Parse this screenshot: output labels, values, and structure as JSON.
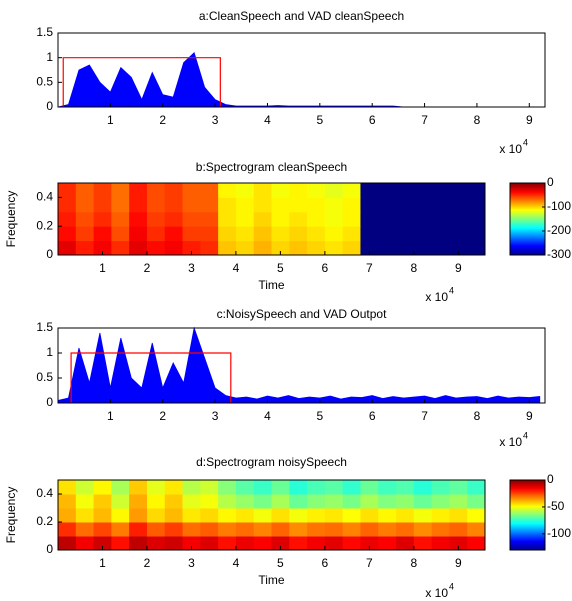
{
  "chart_data": [
    {
      "type": "area",
      "title": "a:CleanSpeech and VAD cleanSpeech",
      "x": [
        0,
        2000,
        4000,
        6000,
        8000,
        10000,
        12000,
        14000,
        16000,
        18000,
        20000,
        22000,
        24000,
        26000,
        28000,
        30000,
        32000,
        34000,
        36000,
        38000,
        40000,
        42000,
        44000,
        46000,
        48000,
        50000,
        52000,
        54000,
        56000,
        58000,
        60000,
        62000,
        64000,
        66000,
        68000,
        70000,
        72000,
        74000,
        76000,
        78000,
        80000,
        82000,
        84000,
        86000,
        88000,
        90000,
        92000
      ],
      "series": [
        {
          "color": "#0000ff",
          "values": [
            0,
            0.05,
            0.75,
            0.85,
            0.5,
            0.3,
            0.8,
            0.6,
            0.15,
            0.7,
            0.25,
            0.2,
            0.9,
            1.1,
            0.4,
            0.15,
            0.05,
            0.02,
            0.02,
            0.02,
            0.02,
            0.03,
            0.02,
            0.02,
            0.02,
            0.02,
            0.02,
            0.02,
            0.02,
            0.02,
            0.02,
            0.02,
            0.02,
            0,
            0,
            0,
            0,
            0,
            0,
            0,
            0,
            0,
            0,
            0,
            0,
            0,
            0
          ]
        },
        {
          "type": "line",
          "color": "#ff0000",
          "x": [
            1000,
            1000,
            31000,
            31000
          ],
          "values": [
            0,
            1,
            1,
            0
          ]
        }
      ],
      "xlim": [
        0,
        93000
      ],
      "xticks": [
        {
          "value": 10000,
          "label": "1"
        },
        {
          "value": 20000,
          "label": "2"
        },
        {
          "value": 30000,
          "label": "3"
        },
        {
          "value": 40000,
          "label": "4"
        },
        {
          "value": 50000,
          "label": "5"
        },
        {
          "value": 60000,
          "label": "6"
        },
        {
          "value": 70000,
          "label": "7"
        },
        {
          "value": 80000,
          "label": "8"
        },
        {
          "value": 90000,
          "label": "9"
        }
      ],
      "x_multiplier": "x 10",
      "x_multiplier_exponent": "4",
      "ylim": [
        0,
        1.5
      ],
      "yticks": [
        0,
        0.5,
        1,
        1.5
      ]
    },
    {
      "type": "heatmap",
      "title": "b:Spectrogram cleanSpeech",
      "xlabel": "Time",
      "ylabel": "Frequency",
      "xlim": [
        0,
        96000
      ],
      "xticks": [
        {
          "value": 10000,
          "label": "1"
        },
        {
          "value": 20000,
          "label": "2"
        },
        {
          "value": 30000,
          "label": "3"
        },
        {
          "value": 40000,
          "label": "4"
        },
        {
          "value": 50000,
          "label": "5"
        },
        {
          "value": 60000,
          "label": "6"
        },
        {
          "value": 70000,
          "label": "7"
        },
        {
          "value": 80000,
          "label": "8"
        },
        {
          "value": 90000,
          "label": "9"
        }
      ],
      "x_multiplier": "x 10",
      "x_multiplier_exponent": "4",
      "ylim": [
        0,
        0.5
      ],
      "yticks": [
        0,
        0.2,
        0.4
      ],
      "values": [
        [
          -30,
          -45,
          -35,
          -50,
          -30,
          -40,
          -35,
          -45,
          -50,
          -95,
          -100,
          -90,
          -100,
          -95,
          -100,
          -105,
          -100,
          -300,
          -300,
          -300,
          -300,
          -300,
          -300,
          -300
        ],
        [
          -40,
          -55,
          -40,
          -60,
          -35,
          -50,
          -40,
          -55,
          -55,
          -100,
          -105,
          -95,
          -105,
          -100,
          -105,
          -110,
          -105,
          -300,
          -300,
          -300,
          -300,
          -300,
          -300,
          -300
        ],
        [
          -45,
          -60,
          -50,
          -65,
          -40,
          -55,
          -50,
          -60,
          -60,
          -105,
          -110,
          -100,
          -110,
          -105,
          -110,
          -115,
          -110,
          -300,
          -300,
          -300,
          -300,
          -300,
          -300,
          -300
        ],
        [
          -50,
          -65,
          -55,
          -70,
          -45,
          -60,
          -55,
          -65,
          -65,
          -105,
          -110,
          -105,
          -110,
          -110,
          -110,
          -115,
          -110,
          -300,
          -300,
          -300,
          -300,
          -300,
          -300,
          -300
        ],
        [
          -50,
          -65,
          -55,
          -70,
          -45,
          -60,
          -55,
          -65,
          -65,
          -110,
          -115,
          -105,
          -115,
          -110,
          -115,
          -120,
          -115,
          -300,
          -300,
          -300,
          -300,
          -300,
          -300,
          -300
        ]
      ],
      "clim": [
        -300,
        0
      ],
      "cticks": [
        0,
        -100,
        -200,
        -300
      ]
    },
    {
      "type": "area",
      "title": "c:NoisySpeech and VAD Outpot",
      "x": [
        0,
        2000,
        4000,
        6000,
        8000,
        10000,
        12000,
        14000,
        16000,
        18000,
        20000,
        22000,
        24000,
        26000,
        28000,
        30000,
        32000,
        34000,
        36000,
        38000,
        40000,
        42000,
        44000,
        46000,
        48000,
        50000,
        52000,
        54000,
        56000,
        58000,
        60000,
        62000,
        64000,
        66000,
        68000,
        70000,
        72000,
        74000,
        76000,
        78000,
        80000,
        82000,
        84000,
        86000,
        88000,
        90000,
        92000
      ],
      "series": [
        {
          "color": "#0000ff",
          "values": [
            0.05,
            0.1,
            1.1,
            0.4,
            1.4,
            0.3,
            1.3,
            0.5,
            0.3,
            1.2,
            0.3,
            0.8,
            0.4,
            1.5,
            0.9,
            0.3,
            0.15,
            0.1,
            0.12,
            0.08,
            0.14,
            0.1,
            0.15,
            0.09,
            0.12,
            0.1,
            0.14,
            0.08,
            0.12,
            0.11,
            0.15,
            0.09,
            0.13,
            0.1,
            0.12,
            0.14,
            0.09,
            0.15,
            0.1,
            0.12,
            0.13,
            0.09,
            0.14,
            0.1,
            0.12,
            0.11,
            0.13
          ]
        },
        {
          "type": "line",
          "color": "#ff0000",
          "x": [
            2500,
            2500,
            33000,
            33000
          ],
          "values": [
            0,
            1,
            1,
            0
          ]
        }
      ],
      "xlim": [
        0,
        93000
      ],
      "xticks": [
        {
          "value": 10000,
          "label": "1"
        },
        {
          "value": 20000,
          "label": "2"
        },
        {
          "value": 30000,
          "label": "3"
        },
        {
          "value": 40000,
          "label": "4"
        },
        {
          "value": 50000,
          "label": "5"
        },
        {
          "value": 60000,
          "label": "6"
        },
        {
          "value": 70000,
          "label": "7"
        },
        {
          "value": 80000,
          "label": "8"
        },
        {
          "value": 90000,
          "label": "9"
        }
      ],
      "x_multiplier": "x 10",
      "x_multiplier_exponent": "4",
      "ylim": [
        0,
        1.5
      ],
      "yticks": [
        0,
        0.5,
        1,
        1.5
      ]
    },
    {
      "type": "heatmap",
      "title": "d:Spectrogram noisySpeech",
      "xlabel": "Time",
      "ylabel": "Frequency",
      "xlim": [
        0,
        96000
      ],
      "xticks": [
        {
          "value": 10000,
          "label": "1"
        },
        {
          "value": 20000,
          "label": "2"
        },
        {
          "value": 30000,
          "label": "3"
        },
        {
          "value": 40000,
          "label": "4"
        },
        {
          "value": 50000,
          "label": "5"
        },
        {
          "value": 60000,
          "label": "6"
        },
        {
          "value": 70000,
          "label": "7"
        },
        {
          "value": 80000,
          "label": "8"
        },
        {
          "value": 90000,
          "label": "9"
        }
      ],
      "x_multiplier": "x 10",
      "x_multiplier_exponent": "4",
      "ylim": [
        0,
        0.5
      ],
      "yticks": [
        0,
        0.2,
        0.4
      ],
      "values": [
        [
          -8,
          -15,
          -10,
          -18,
          -8,
          -12,
          -10,
          -15,
          -12,
          -18,
          -14,
          -16,
          -12,
          -18,
          -15,
          -13,
          -17,
          -14,
          -16,
          -12,
          -18,
          -15,
          -13,
          -16
        ],
        [
          -22,
          -30,
          -25,
          -32,
          -20,
          -28,
          -24,
          -30,
          -28,
          -32,
          -30,
          -33,
          -29,
          -34,
          -31,
          -30,
          -33,
          -29,
          -32,
          -30,
          -34,
          -31,
          -29,
          -33
        ],
        [
          -38,
          -45,
          -40,
          -48,
          -36,
          -44,
          -40,
          -46,
          -44,
          -48,
          -46,
          -50,
          -45,
          -50,
          -47,
          -46,
          -49,
          -45,
          -48,
          -46,
          -50,
          -47,
          -45,
          -49
        ],
        [
          -40,
          -50,
          -42,
          -55,
          -38,
          -48,
          -42,
          -52,
          -50,
          -58,
          -62,
          -66,
          -60,
          -68,
          -64,
          -62,
          -66,
          -60,
          -65,
          -63,
          -68,
          -64,
          -61,
          -66
        ],
        [
          -45,
          -55,
          -48,
          -60,
          -42,
          -52,
          -46,
          -58,
          -55,
          -64,
          -70,
          -74,
          -68,
          -76,
          -72,
          -70,
          -75,
          -68,
          -73,
          -71,
          -76,
          -72,
          -69,
          -74
        ]
      ],
      "clim": [
        -130,
        0
      ],
      "cticks": [
        0,
        -50,
        -100
      ]
    }
  ]
}
